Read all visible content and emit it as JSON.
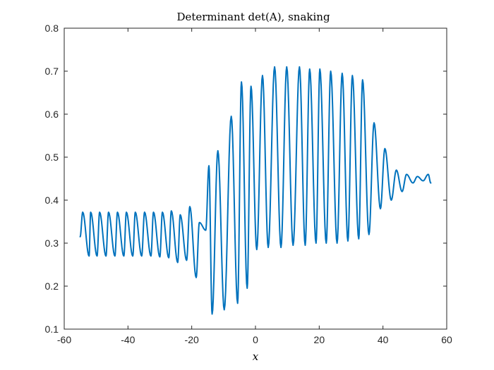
{
  "chart_data": {
    "type": "line",
    "title": "Determinant det(A), snaking",
    "xlabel": "x",
    "ylabel": "",
    "xlim": [
      -60,
      60
    ],
    "ylim": [
      0.1,
      0.8
    ],
    "xticks": [
      -60,
      -40,
      -20,
      0,
      20,
      40,
      60
    ],
    "yticks": [
      0.1,
      0.2,
      0.3,
      0.4,
      0.5,
      0.6,
      0.7,
      0.8
    ],
    "grid": false,
    "legend": "none",
    "colors": {
      "line": "#0072BD",
      "axes": "#262626"
    },
    "series": [
      {
        "x": [
          -55.0,
          -54.2,
          -52.2,
          -51.7,
          -49.7,
          -48.9,
          -46.9,
          -46.1,
          -44.1,
          -43.3,
          -41.3,
          -40.5,
          -38.5,
          -37.7,
          -35.7,
          -34.8,
          -32.8,
          -32.0,
          -30.0,
          -29.2,
          -27.2,
          -26.4,
          -24.4,
          -23.6,
          -21.6,
          -20.6,
          -18.6,
          -17.6,
          -15.6,
          -14.6,
          -13.6,
          -11.8,
          -9.8,
          -7.6,
          -5.6,
          -4.4,
          -2.6,
          -1.4,
          0.4,
          2.2,
          4.0,
          6.0,
          8.0,
          9.8,
          11.8,
          13.8,
          15.6,
          17.0,
          19.0,
          20.2,
          22.2,
          23.6,
          25.6,
          27.2,
          29.0,
          30.4,
          32.4,
          33.6,
          35.6,
          37.2,
          39.2,
          40.6,
          42.6,
          44.2,
          46.0,
          47.4,
          49.4,
          50.8,
          52.6,
          54.2,
          55.0
        ],
        "y": [
          0.315,
          0.372,
          0.27,
          0.372,
          0.27,
          0.372,
          0.27,
          0.372,
          0.27,
          0.372,
          0.27,
          0.372,
          0.27,
          0.372,
          0.27,
          0.372,
          0.27,
          0.372,
          0.268,
          0.372,
          0.266,
          0.375,
          0.255,
          0.366,
          0.26,
          0.385,
          0.22,
          0.348,
          0.33,
          0.48,
          0.135,
          0.515,
          0.145,
          0.595,
          0.16,
          0.675,
          0.195,
          0.665,
          0.285,
          0.69,
          0.29,
          0.71,
          0.29,
          0.71,
          0.295,
          0.71,
          0.295,
          0.705,
          0.3,
          0.705,
          0.3,
          0.7,
          0.3,
          0.695,
          0.305,
          0.69,
          0.31,
          0.68,
          0.32,
          0.58,
          0.38,
          0.52,
          0.4,
          0.47,
          0.42,
          0.46,
          0.44,
          0.455,
          0.445,
          0.46,
          0.44
        ]
      }
    ]
  }
}
